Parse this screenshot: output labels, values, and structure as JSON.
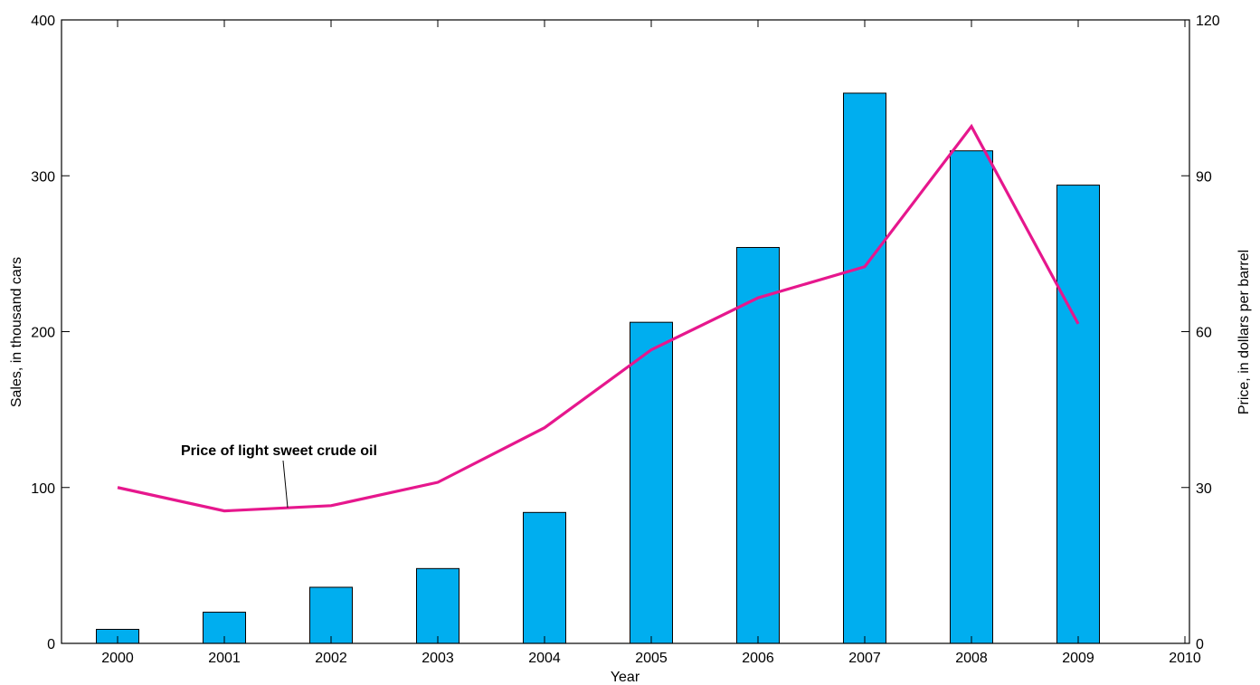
{
  "chart_data": {
    "type": "bar",
    "categories": [
      "2000",
      "2001",
      "2002",
      "2003",
      "2004",
      "2005",
      "2006",
      "2007",
      "2008",
      "2009"
    ],
    "x_ticks": [
      "2000",
      "2001",
      "2002",
      "2003",
      "2004",
      "2005",
      "2006",
      "2007",
      "2008",
      "2009",
      "2010"
    ],
    "xlabel": "Year",
    "ylabel": "Sales, in thousand cars",
    "y2label": "Price, in dollars per barrel",
    "ylim": [
      0,
      400
    ],
    "y2lim": [
      0,
      120
    ],
    "y_ticks": [
      0,
      100,
      200,
      300,
      400
    ],
    "y2_ticks": [
      0,
      30,
      60,
      90,
      120
    ],
    "grid": false,
    "series": [
      {
        "type": "bar",
        "axis": "left",
        "values": [
          9,
          20,
          36,
          48,
          84,
          206,
          254,
          353,
          316,
          294
        ],
        "color": "#00AEEF"
      },
      {
        "type": "line",
        "axis": "right",
        "values": [
          30,
          25.5,
          26.5,
          31,
          41.5,
          56.5,
          66.5,
          72.5,
          99.5,
          61.5
        ],
        "color": "#E6178D"
      }
    ],
    "annotations": [
      {
        "text": "Price of light sweet crude oil",
        "series_index": 1,
        "at_x": "2001.6"
      }
    ]
  }
}
